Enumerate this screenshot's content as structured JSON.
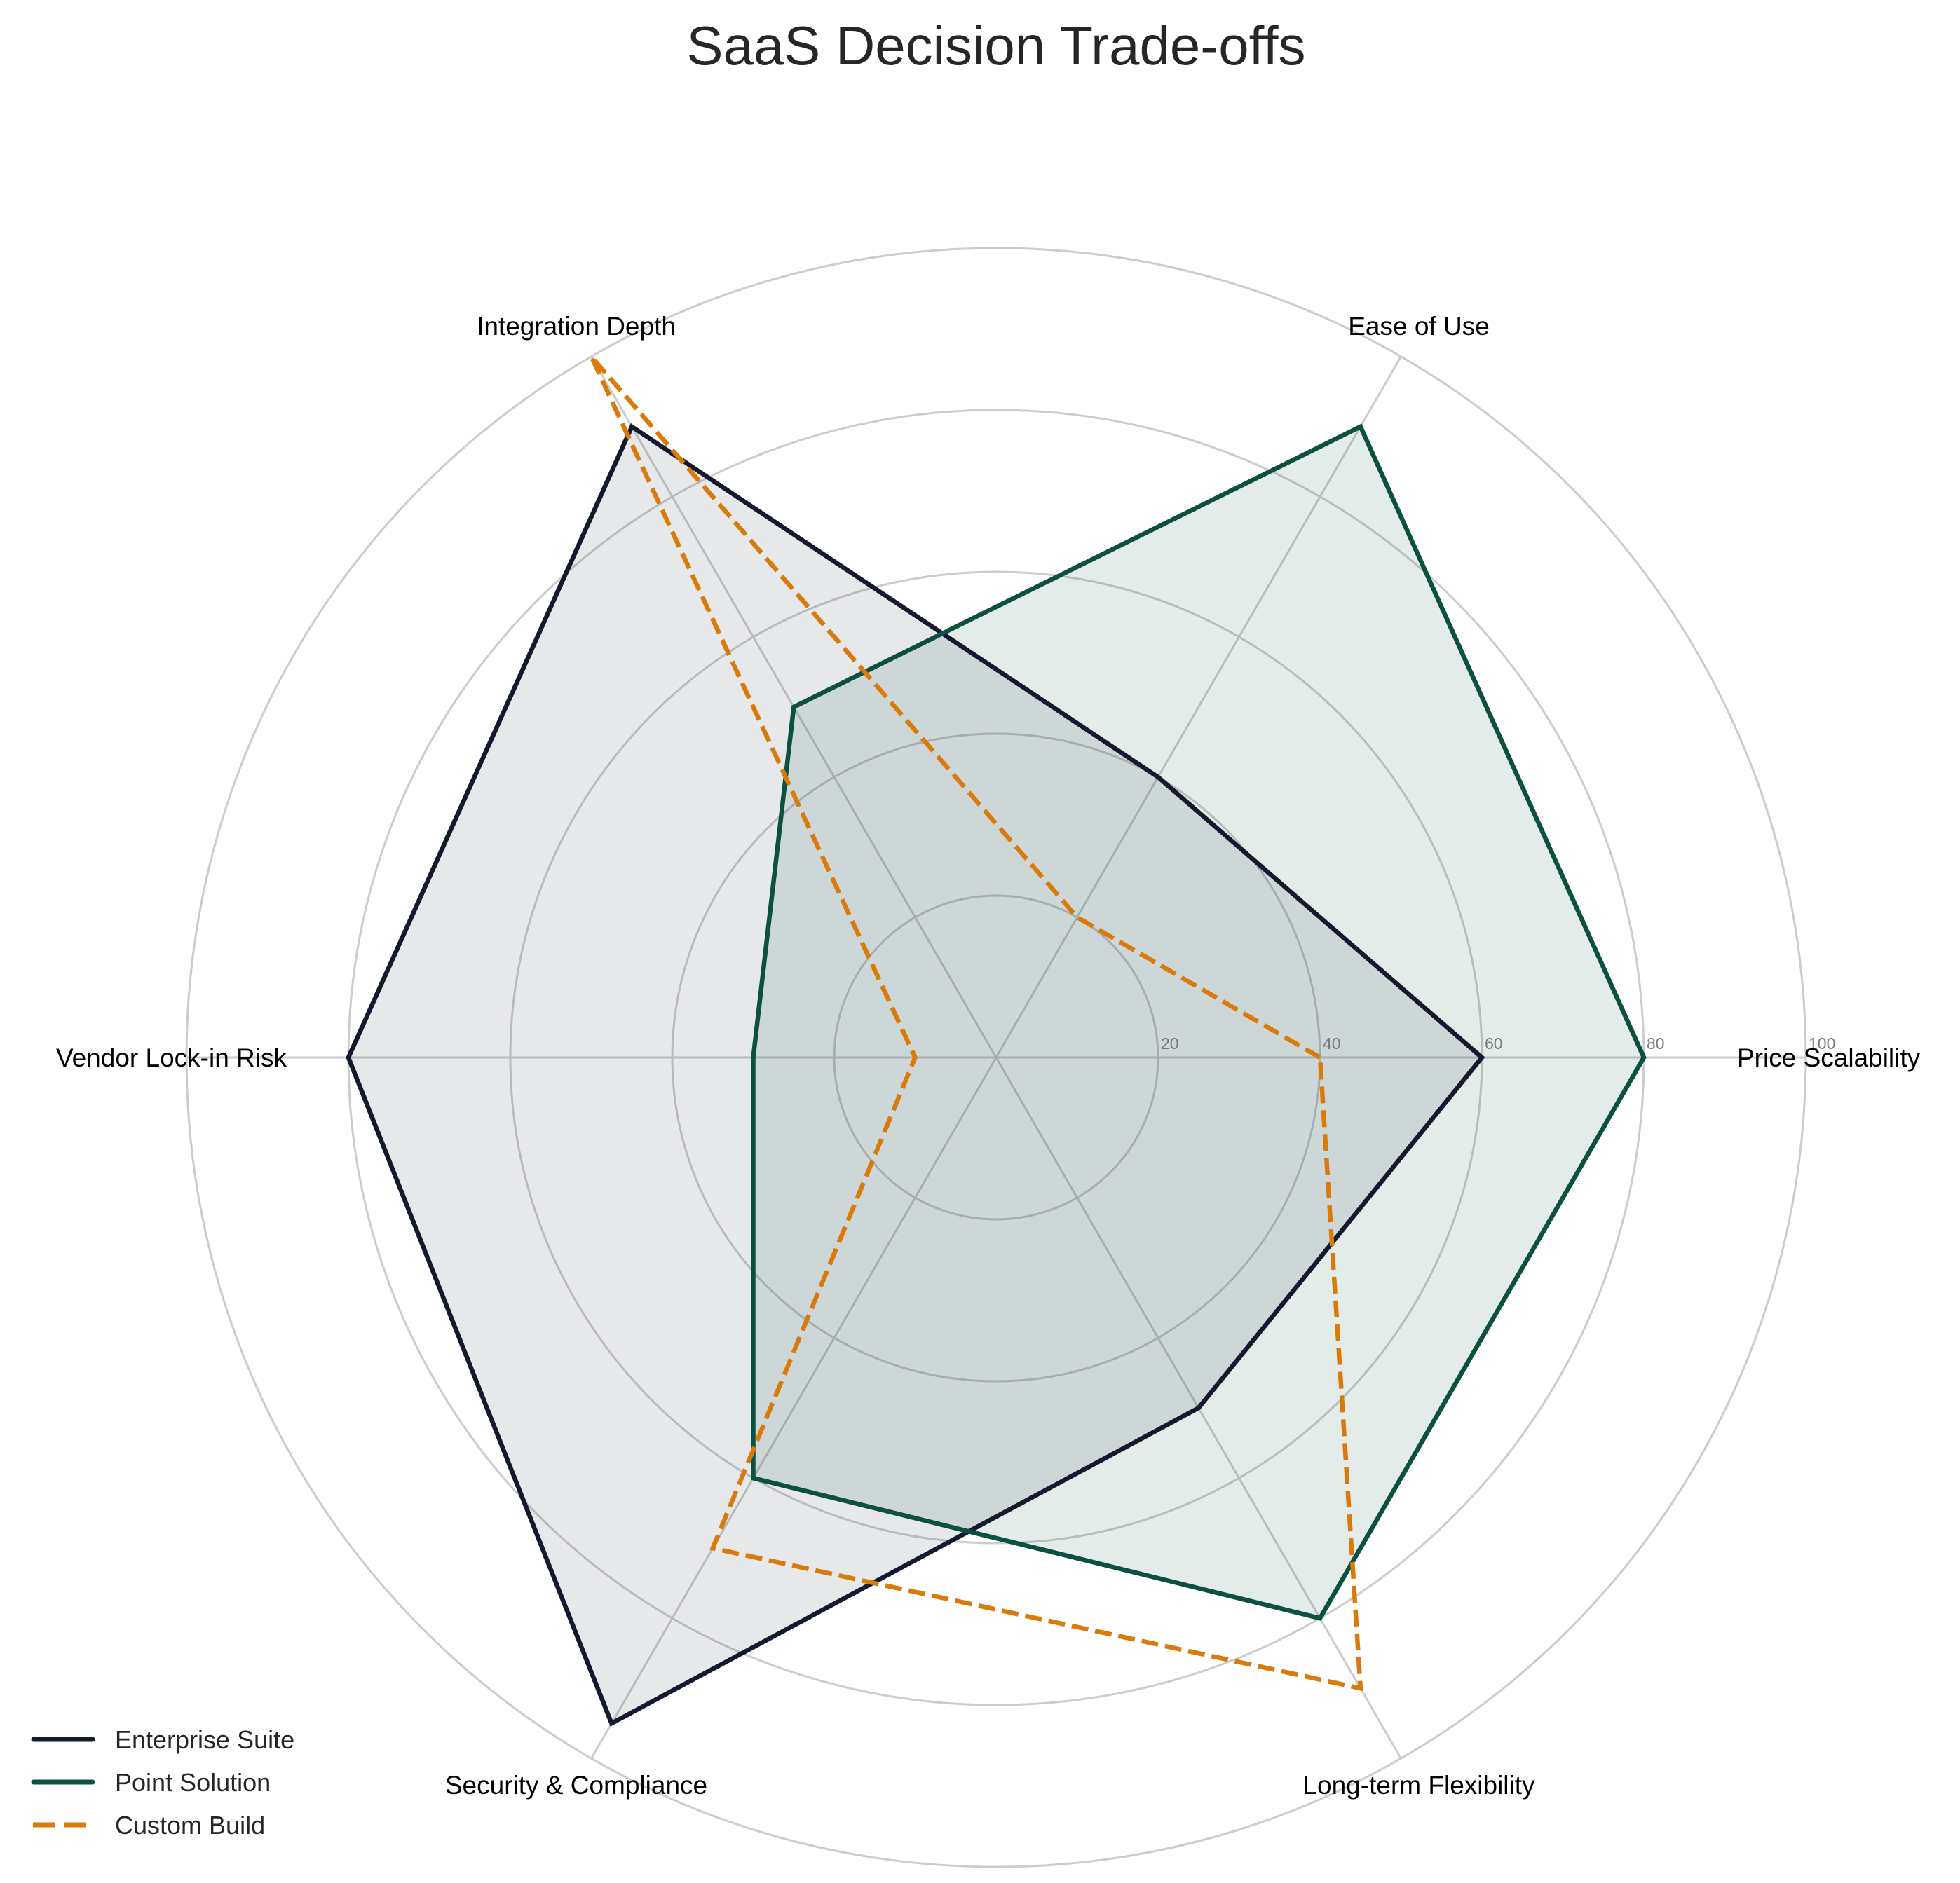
{
  "chart_data": {
    "type": "radar",
    "title": "SaaS Decision Trade-offs",
    "categories": [
      "Price Scalability",
      "Ease of Use",
      "Integration Depth",
      "Vendor Lock-in Risk",
      "Security & Compliance",
      "Long-term Flexibility"
    ],
    "rlim": [
      0,
      100
    ],
    "r_ticks": [
      20,
      40,
      60,
      80,
      100
    ],
    "grid": true,
    "legend_position": "lower left",
    "series": [
      {
        "name": "Enterprise Suite",
        "values": [
          60,
          40,
          90,
          80,
          95,
          50
        ],
        "color": "#141a2e",
        "line_style": "solid",
        "fill": "#141a2e",
        "fill_opacity": 0.1
      },
      {
        "name": "Point Solution",
        "values": [
          80,
          90,
          50,
          30,
          60,
          80
        ],
        "color": "#0b5040",
        "line_style": "solid",
        "fill": "#0b5040",
        "fill_opacity": 0.11
      },
      {
        "name": "Custom Build",
        "values": [
          40,
          20,
          100,
          10,
          70,
          90
        ],
        "color": "#d97a0b",
        "line_style": "dashed",
        "fill": null,
        "fill_opacity": 0
      }
    ]
  },
  "legend": {
    "items": [
      {
        "label": "Enterprise Suite"
      },
      {
        "label": "Point Solution"
      },
      {
        "label": "Custom Build"
      }
    ]
  }
}
